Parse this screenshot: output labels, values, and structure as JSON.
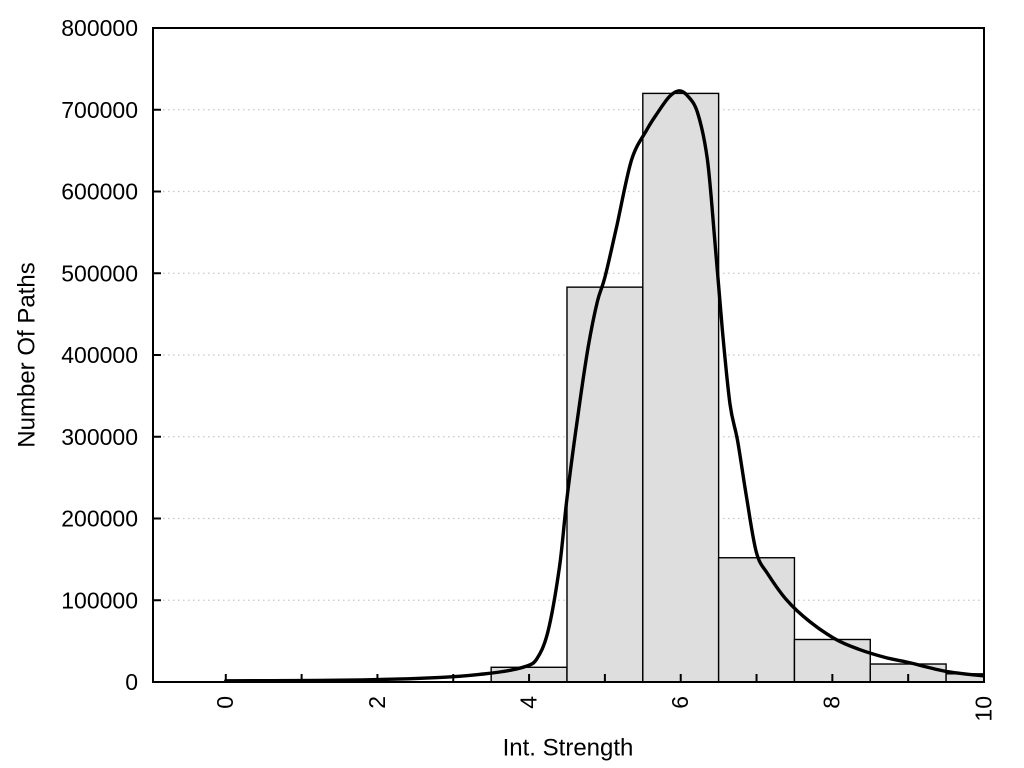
{
  "page": {
    "background": "#ffffff"
  },
  "chart_data": {
    "type": "bar",
    "variant": "histogram_with_density_curve",
    "title": "",
    "xlabel": "Int. Strength",
    "ylabel": "Number Of Paths",
    "xlim": [
      -0.96,
      10
    ],
    "ylim": [
      0,
      800000
    ],
    "x_ticks": [
      0,
      1,
      2,
      3,
      4,
      5,
      6,
      7,
      8,
      9,
      10
    ],
    "x_labeled_tick_values": [
      0,
      2,
      4,
      6,
      8,
      10
    ],
    "x_tick_labels": [
      "0",
      "2",
      "4",
      "6",
      "8",
      "10"
    ],
    "x_tick_label_rotation": -90,
    "y_ticks": [
      0,
      100000,
      200000,
      300000,
      400000,
      500000,
      600000,
      700000,
      800000
    ],
    "y_tick_labels": [
      "0",
      "100000",
      "200000",
      "300000",
      "400000",
      "500000",
      "600000",
      "700000",
      "800000"
    ],
    "grid": {
      "axis": "y",
      "line_style": "dotted",
      "visible": true
    },
    "legend": {
      "visible": false
    },
    "ticks_direction": "in",
    "histogram": {
      "bin_width": 1,
      "bin_centers": [
        4,
        5,
        6,
        7,
        8,
        9,
        10
      ],
      "counts": [
        18000,
        483000,
        720000,
        152000,
        52000,
        22000,
        10000
      ]
    },
    "density_curve": {
      "points": [
        [
          0,
          1500
        ],
        [
          0.6,
          1600
        ],
        [
          1.2,
          1900
        ],
        [
          1.8,
          2600
        ],
        [
          2.4,
          3900
        ],
        [
          3.0,
          6500
        ],
        [
          3.4,
          9800
        ],
        [
          3.7,
          13500
        ],
        [
          3.95,
          19000
        ],
        [
          4.1,
          28000
        ],
        [
          4.25,
          62000
        ],
        [
          4.4,
          140000
        ],
        [
          4.5,
          225000
        ],
        [
          4.65,
          330000
        ],
        [
          4.78,
          410000
        ],
        [
          4.9,
          465000
        ],
        [
          5.0,
          495000
        ],
        [
          5.15,
          555000
        ],
        [
          5.35,
          638000
        ],
        [
          5.55,
          675000
        ],
        [
          5.7,
          697000
        ],
        [
          5.85,
          716000
        ],
        [
          5.97,
          723000
        ],
        [
          6.08,
          718000
        ],
        [
          6.22,
          697000
        ],
        [
          6.35,
          640000
        ],
        [
          6.45,
          540000
        ],
        [
          6.55,
          430000
        ],
        [
          6.65,
          340000
        ],
        [
          6.75,
          295000
        ],
        [
          6.87,
          225000
        ],
        [
          7.0,
          158000
        ],
        [
          7.15,
          132000
        ],
        [
          7.4,
          100000
        ],
        [
          7.7,
          74000
        ],
        [
          8.05,
          52000
        ],
        [
          8.35,
          40000
        ],
        [
          8.7,
          30000
        ],
        [
          9.0,
          24000
        ],
        [
          9.5,
          13000
        ],
        [
          10,
          7500
        ]
      ]
    },
    "style": {
      "bar_fill": "#dedede",
      "bar_stroke": "#000000",
      "curve_color": "#000000",
      "grid_color": "#c6c6c6",
      "axis_color": "#000000",
      "text_color": "#000000",
      "background": "#ffffff"
    }
  }
}
